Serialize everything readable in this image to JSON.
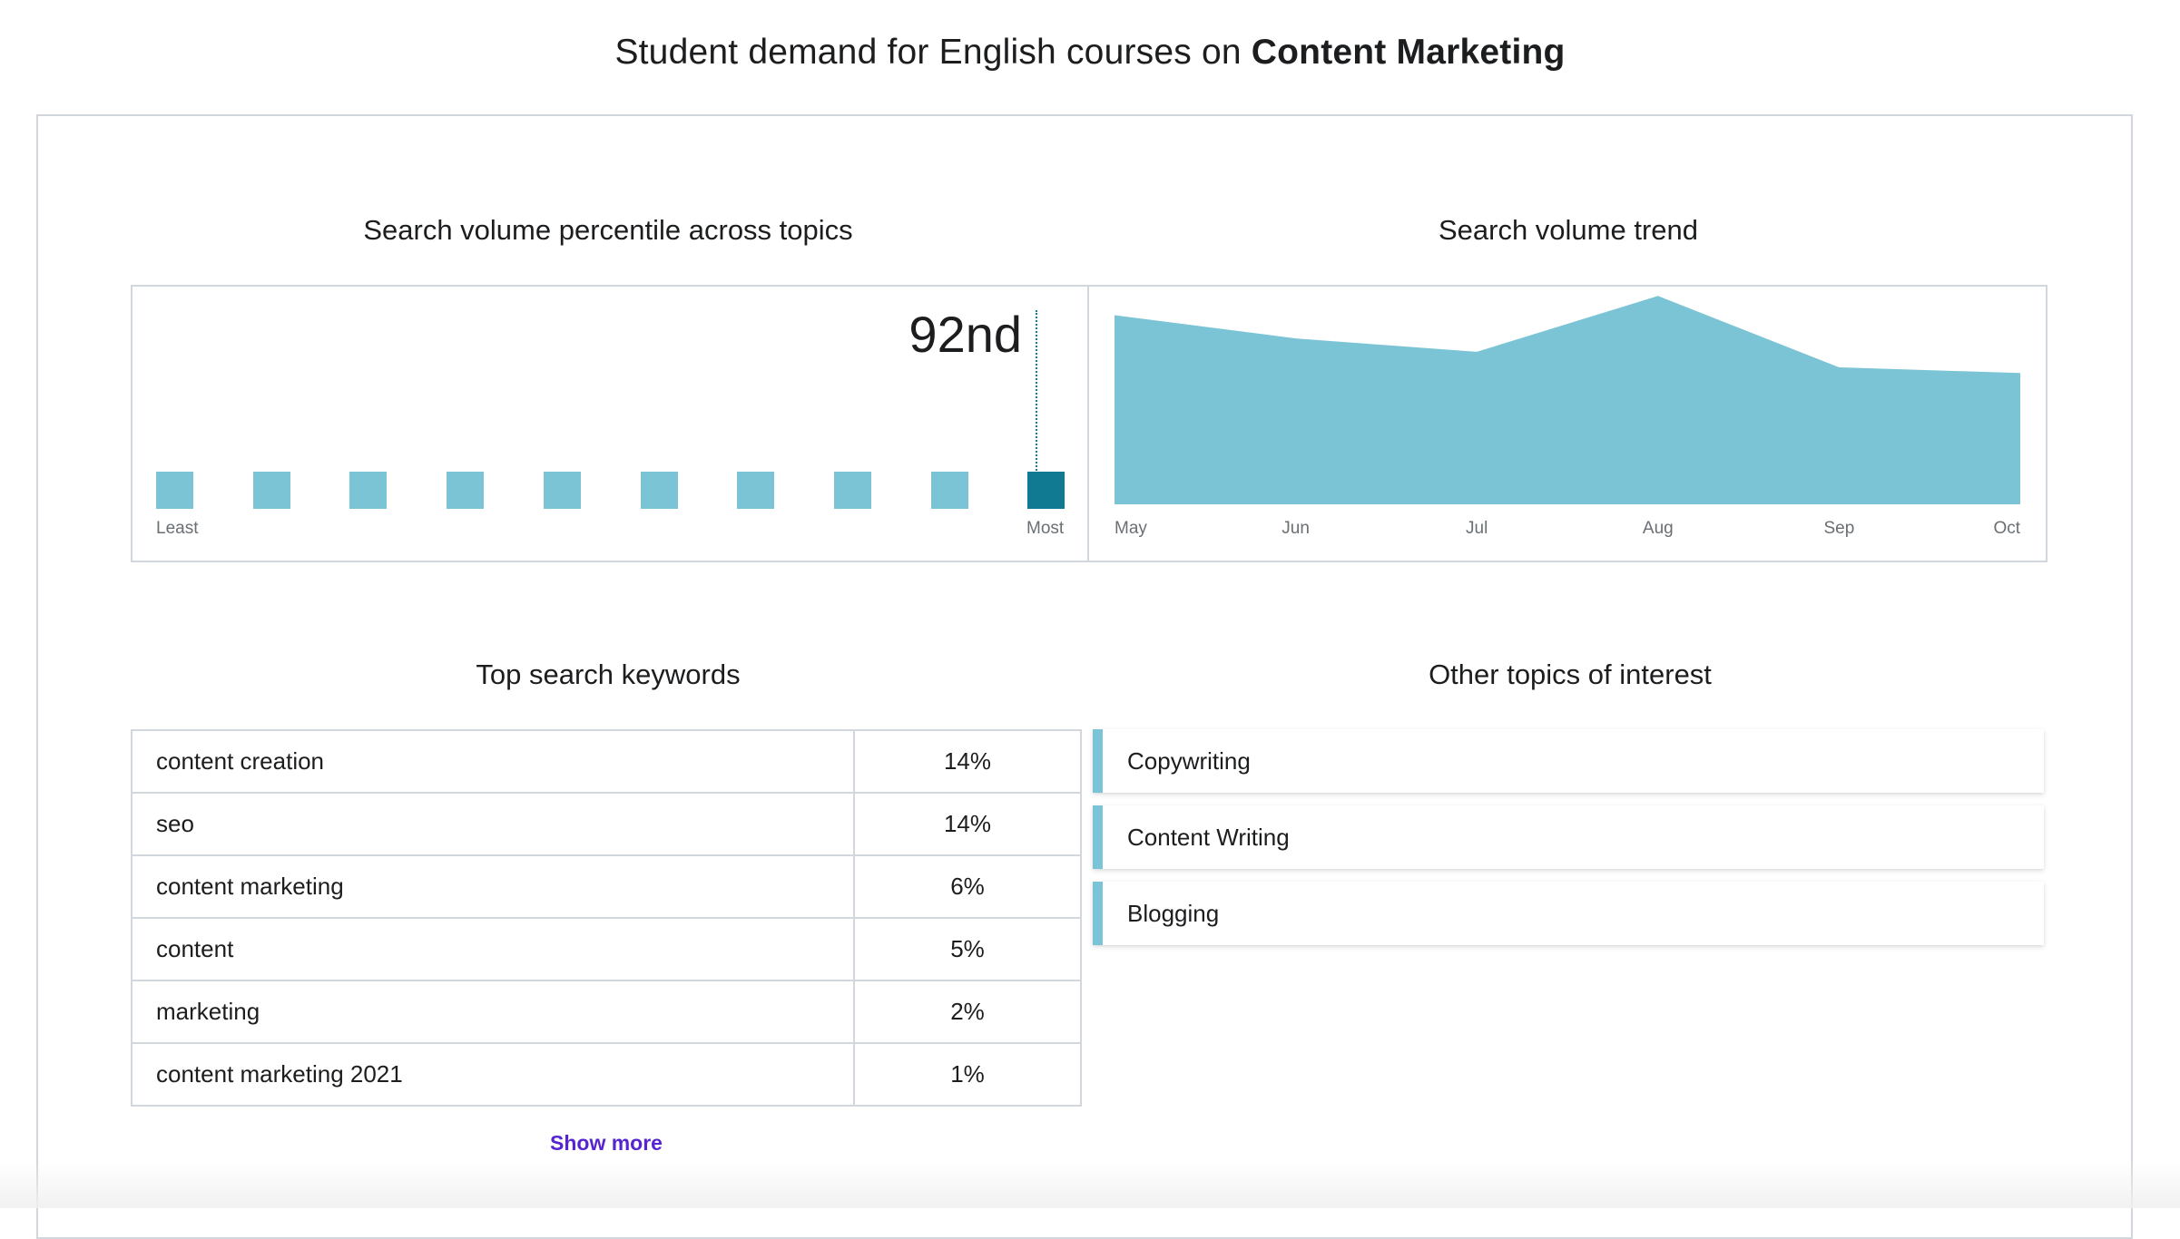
{
  "header": {
    "title_prefix": "Student demand for English courses on ",
    "title_topic": "Content Marketing"
  },
  "percentile": {
    "section_title": "Search volume percentile across topics",
    "value_label": "92nd",
    "bucket_count": 10,
    "active_bucket": 10,
    "least_label": "Least",
    "most_label": "Most",
    "colors": {
      "inactive": "#7bc4d5",
      "active": "#117a93"
    }
  },
  "trend": {
    "section_title": "Search volume trend"
  },
  "chart_data": {
    "type": "area",
    "x": [
      "May",
      "Jun",
      "Jul",
      "Aug",
      "Sep",
      "Oct"
    ],
    "series": [
      {
        "values": [
          98,
          86,
          79,
          108,
          71,
          68
        ]
      }
    ],
    "ylim": [
      0,
      110
    ],
    "grid": false,
    "color": "#7bc4d5"
  },
  "keywords": {
    "section_title": "Top search keywords",
    "rows": [
      {
        "keyword": "content creation",
        "share": "14%"
      },
      {
        "keyword": "seo",
        "share": "14%"
      },
      {
        "keyword": "content marketing",
        "share": "6%"
      },
      {
        "keyword": "content",
        "share": "5%"
      },
      {
        "keyword": "marketing",
        "share": "2%"
      },
      {
        "keyword": "content marketing 2021",
        "share": "1%"
      }
    ],
    "show_more_label": "Show more"
  },
  "topics": {
    "section_title": "Other topics of interest",
    "items": [
      {
        "label": "Copywriting"
      },
      {
        "label": "Content Writing"
      },
      {
        "label": "Blogging"
      }
    ]
  }
}
